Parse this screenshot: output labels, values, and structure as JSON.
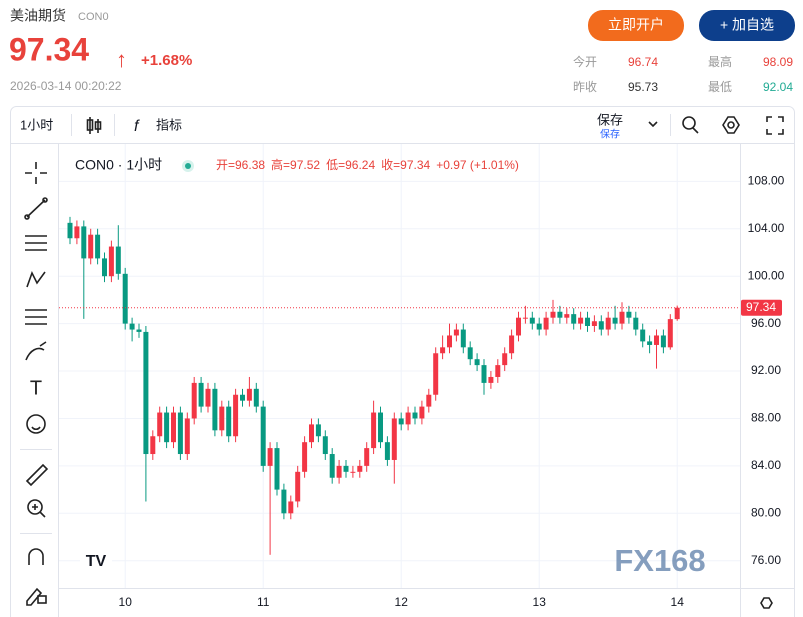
{
  "header": {
    "name": "美油期货",
    "code": "CON0",
    "price": "97.34",
    "arrow": "↑",
    "change": "+1.68%",
    "time": "2026-03-14 00:20:22",
    "open_account": "立即开户",
    "add_watch": "+ 加自选"
  },
  "quotes": [
    {
      "label": "今开",
      "value": "96.74"
    },
    {
      "label": "最高",
      "value": "98.09"
    },
    {
      "label": "昨收",
      "value": "95.73"
    },
    {
      "label": "最低",
      "value": "92.04"
    }
  ],
  "toolbar": {
    "interval": "1小时",
    "indicator": "指标",
    "save": "保存",
    "save_sub": "保存"
  },
  "legend": {
    "symbol": "CON0 · 1小时",
    "items": [
      "开=96.38",
      "高=97.52",
      "低=96.24",
      "收=97.34",
      "+0.97 (+1.01%)"
    ]
  },
  "watermark": "FX168",
  "chart_data": {
    "type": "candlestick",
    "up_color": "#f23645",
    "down_color": "#089981",
    "grid": true,
    "categories": [
      null,
      null,
      null,
      null,
      null,
      null,
      null,
      null,
      "10",
      null,
      null,
      null,
      null,
      null,
      null,
      null,
      null,
      null,
      null,
      null,
      null,
      null,
      null,
      null,
      null,
      null,
      null,
      null,
      "11",
      null,
      null,
      null,
      null,
      null,
      null,
      null,
      null,
      null,
      null,
      null,
      null,
      null,
      null,
      null,
      null,
      null,
      null,
      null,
      "12",
      null,
      null,
      null,
      null,
      null,
      null,
      null,
      null,
      null,
      null,
      null,
      null,
      null,
      null,
      null,
      null,
      null,
      null,
      null,
      "13",
      null,
      null,
      null,
      null,
      null,
      null,
      null,
      null,
      null,
      null,
      null,
      null,
      null,
      null,
      null,
      null,
      null,
      null,
      null,
      "14"
    ],
    "open": [
      104.5,
      103.2,
      104.2,
      101.5,
      103.5,
      101.5,
      100,
      102.5,
      100.2,
      96,
      95.5,
      95.3,
      85,
      86.5,
      88.5,
      86,
      88.5,
      85,
      88,
      91,
      89,
      90.5,
      87,
      89,
      86.5,
      90,
      89.5,
      90.5,
      89,
      84,
      85.5,
      82,
      80,
      81,
      83.5,
      86,
      87.5,
      86.5,
      85,
      83,
      84,
      83.5,
      83.5,
      84,
      85.5,
      88.5,
      86,
      84.5,
      88,
      87.5,
      88.5,
      88,
      89,
      90,
      93.5,
      94,
      95,
      95.5,
      94,
      93,
      92.5,
      91,
      91.5,
      92.5,
      93.5,
      95,
      96.5,
      96.5,
      96,
      95.5,
      96.5,
      97,
      96.5,
      96.8,
      96,
      96.5,
      95.8,
      96.2,
      95.5,
      96.5,
      96,
      97,
      96.5,
      95.5,
      94.5,
      94.2,
      95,
      94,
      96.38
    ],
    "high": [
      105,
      104.7,
      104.7,
      104,
      104,
      102,
      103,
      104.3,
      100.7,
      96.5,
      96,
      95.8,
      87,
      89,
      89,
      89,
      89,
      88.5,
      91.5,
      91.5,
      91,
      91,
      89.5,
      89.5,
      90.5,
      90.5,
      91.5,
      91,
      89.5,
      86,
      86,
      82.5,
      81.5,
      84,
      86.5,
      88,
      88,
      87,
      85.5,
      84.5,
      84.5,
      84,
      84.5,
      86,
      89.5,
      89,
      86.5,
      88.5,
      88.5,
      89,
      89,
      89.5,
      90.5,
      94,
      95,
      96,
      96,
      96,
      94.5,
      93.5,
      93,
      92,
      93,
      94,
      95.5,
      97,
      97.5,
      97,
      96.5,
      97,
      98,
      97.5,
      97.3,
      97.3,
      97,
      97,
      96.7,
      96.7,
      97,
      97.5,
      97.8,
      97.5,
      97,
      96,
      95,
      95.5,
      95.5,
      96.8,
      97.52
    ],
    "low": [
      102.7,
      102.7,
      96.4,
      101,
      101,
      99.5,
      99.5,
      99.7,
      95.5,
      94.5,
      94.8,
      81,
      84.5,
      86,
      85.5,
      85.5,
      84.5,
      84.5,
      87.5,
      88.5,
      88.5,
      86.5,
      86.5,
      86,
      86,
      89,
      89,
      88.5,
      83.5,
      76.5,
      81.5,
      79.5,
      79.5,
      80.5,
      83,
      85.5,
      86,
      84.5,
      82.5,
      82.5,
      83,
      83,
      83,
      83.5,
      85,
      85.5,
      84,
      82.5,
      87,
      87,
      87.5,
      87.5,
      88.5,
      89.5,
      93,
      93.5,
      94.5,
      93.5,
      92.5,
      92,
      90,
      90.5,
      91,
      92,
      93,
      94.5,
      96,
      95.5,
      95,
      95,
      96,
      96,
      96,
      95.5,
      95.5,
      95.3,
      95.3,
      95,
      95,
      95.5,
      95.5,
      96,
      95,
      94,
      93.5,
      92.2,
      93.5,
      93.8,
      96.24
    ],
    "close": [
      103.2,
      104.2,
      101.5,
      103.5,
      101.5,
      100,
      102.5,
      100.2,
      96,
      95.5,
      95.3,
      85,
      86.5,
      88.5,
      86,
      88.5,
      85,
      88,
      91,
      89,
      90.5,
      87,
      89,
      86.5,
      90,
      89.5,
      90.5,
      89,
      84,
      85.5,
      82,
      80,
      81,
      83.5,
      86,
      87.5,
      86.5,
      85,
      83,
      84,
      83.5,
      83.5,
      84,
      85.5,
      88.5,
      86,
      84.5,
      88,
      87.5,
      88.5,
      88,
      89,
      90,
      93.5,
      94,
      95,
      95.5,
      94,
      93,
      92.5,
      91,
      91.5,
      92.5,
      93.5,
      95,
      96.5,
      96.5,
      96,
      95.5,
      96.5,
      97,
      96.5,
      96.8,
      96,
      96.5,
      95.8,
      96.2,
      95.5,
      96.5,
      96,
      97,
      96.5,
      95.5,
      94.5,
      94.2,
      95,
      94,
      96.38,
      97.34
    ],
    "ylim": [
      73.7,
      111.15
    ],
    "yticks": [
      {
        "value": 76,
        "label": "76.00"
      },
      {
        "value": 80,
        "label": "80.00"
      },
      {
        "value": 84,
        "label": "84.00"
      },
      {
        "value": 88,
        "label": "88.00"
      },
      {
        "value": 92,
        "label": "92.00"
      },
      {
        "value": 96,
        "label": "96.00"
      },
      {
        "value": 100,
        "label": "100.00"
      },
      {
        "value": 104,
        "label": "104.00"
      },
      {
        "value": 108,
        "label": "108.00"
      }
    ]
  }
}
